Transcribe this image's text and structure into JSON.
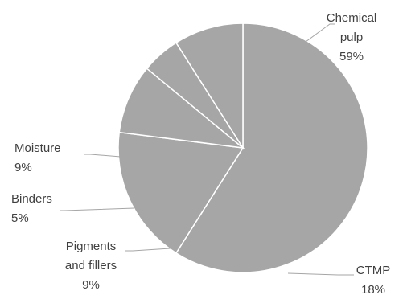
{
  "chart_data": {
    "type": "pie",
    "title": "",
    "slices": [
      {
        "label_lines": [
          "Chemical",
          "pulp"
        ],
        "pct_text": "59%",
        "value": 59
      },
      {
        "label_lines": [
          "CTMP"
        ],
        "pct_text": "18%",
        "value": 18
      },
      {
        "label_lines": [
          "Pigments",
          "and fillers"
        ],
        "pct_text": "9%",
        "value": 9
      },
      {
        "label_lines": [
          "Binders"
        ],
        "pct_text": "5%",
        "value": 5
      },
      {
        "label_lines": [
          "Moisture"
        ],
        "pct_text": "9%",
        "value": 9
      }
    ],
    "start_angle_deg": 0,
    "direction": "clockwise",
    "slice_color": "#a6a6a6",
    "separator_color": "#ffffff",
    "label_color": "#404040",
    "legend": "none"
  }
}
